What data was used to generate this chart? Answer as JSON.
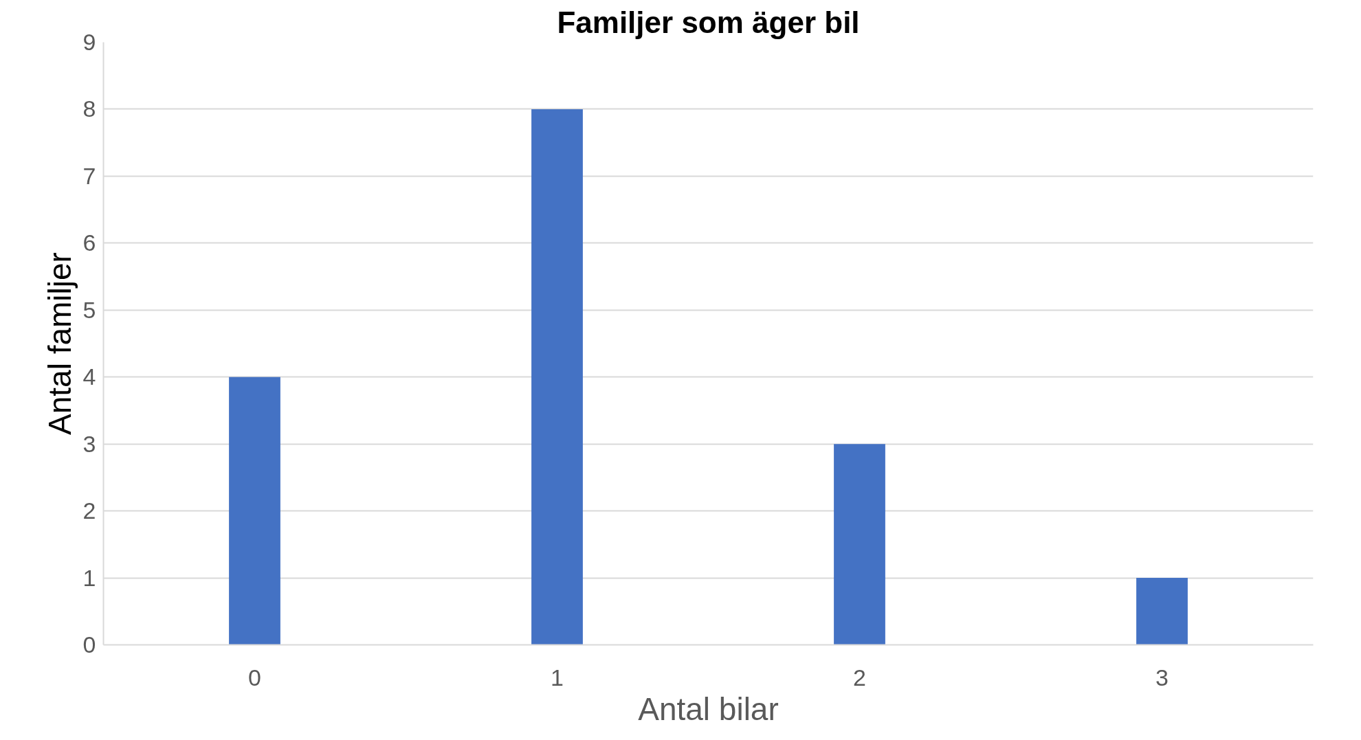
{
  "chart_data": {
    "type": "bar",
    "title": "Familjer som äger bil",
    "xlabel": "Antal bilar",
    "ylabel": "Antal familjer",
    "categories": [
      "0",
      "1",
      "2",
      "3"
    ],
    "values": [
      4,
      8,
      3,
      1
    ],
    "color": "#4472c4",
    "ylim": [
      0,
      9
    ],
    "yticks": [
      0,
      1,
      2,
      3,
      4,
      5,
      6,
      7,
      8,
      9
    ],
    "grid": "y"
  }
}
